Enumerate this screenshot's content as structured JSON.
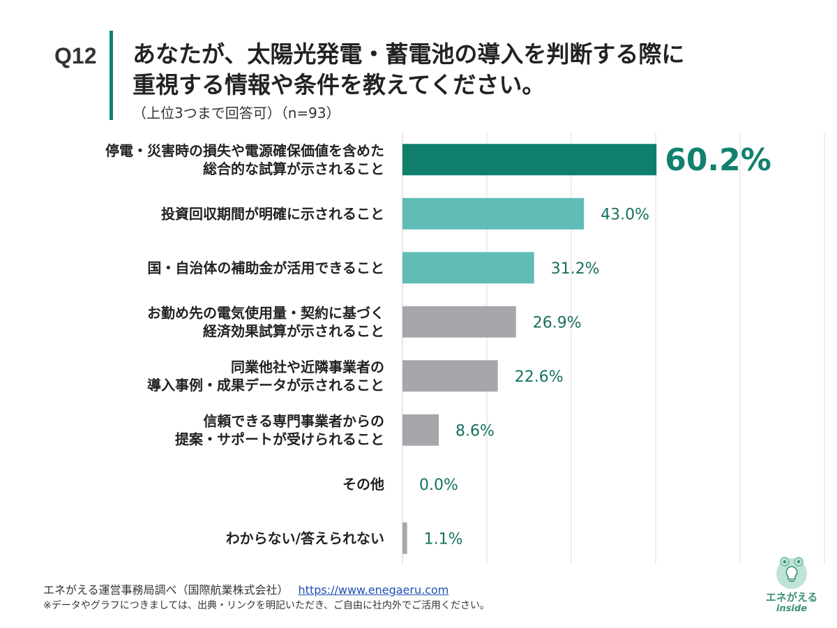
{
  "header": {
    "q_number": "Q12",
    "title_line1": "あなたが、太陽光発電・蓄電池の導入を判断する際に",
    "title_line2": "重視する情報や条件を教えてください。",
    "subtitle": "（上位3つまで回答可）（n=93）"
  },
  "chart_data": {
    "type": "bar",
    "orientation": "horizontal",
    "xlim": [
      0,
      100
    ],
    "grid": true,
    "categories": [
      [
        "停電・災害時の損失や電源確保価値を含めた",
        "総合的な試算が示されること"
      ],
      [
        "投資回収期間が明確に示されること"
      ],
      [
        "国・自治体の補助金が活用できること"
      ],
      [
        "お勤め先の電気使用量・契約に基づく",
        "経済効果試算が示されること"
      ],
      [
        "同業他社や近隣事業者の",
        "導入事例・成果データが示されること"
      ],
      [
        "信頼できる専門事業者からの",
        "提案・サポートが受けられること"
      ],
      [
        "その他"
      ],
      [
        "わからない/答えられない"
      ]
    ],
    "values": [
      60.2,
      43.0,
      31.2,
      26.9,
      22.6,
      8.6,
      0.0,
      1.1
    ],
    "value_labels": [
      "60.2%",
      "43.0%",
      "31.2%",
      "26.9%",
      "22.6%",
      "8.6%",
      "0.0%",
      "1.1%"
    ],
    "colors": [
      "#0f7f6c",
      "#5fbdb6",
      "#5fbdb6",
      "#a7a6ab",
      "#a7a6ab",
      "#a7a6ab",
      "#a7a6ab",
      "#a7a6ab"
    ]
  },
  "footer": {
    "source": "エネがえる運営事務局調べ（国際航業株式会社）",
    "url": "https://www.enegaeru.com",
    "note": "※データやグラフにつきましては、出典・リンクを明記いただき、ご自由に社内外でご活用ください。"
  },
  "logo": {
    "icon": "lightbulb-frog-icon",
    "text": "エネがえる",
    "sub": "inside"
  }
}
